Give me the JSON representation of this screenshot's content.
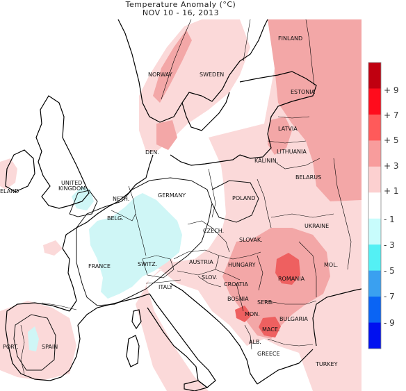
{
  "title": {
    "line1": "Temperature Anomaly (°C)",
    "line2": "NOV 10 - 16, 2013"
  },
  "labels": {
    "finland": "FINLAND",
    "norway": "NORWAY",
    "sweden": "SWEDEN",
    "estonia": "ESTONIA",
    "latvia": "LATVIA",
    "lithuania": "LITHUANIA",
    "kaliningrad": "KALININ.",
    "den": "DEN.",
    "belarus": "BELARUS",
    "ireland": "ELAND",
    "uk1": "UNITED",
    "uk2": "KINGDOM",
    "neth": "NETH.",
    "germany": "GERMANY",
    "poland": "POLAND",
    "belg": "BELG.",
    "ukraine": "UKRAINE",
    "czech": "CZECH.",
    "slovak": "SLOVAK.",
    "france": "FRANCE",
    "switz": "SWITZ.",
    "austria": "AUSTRIA",
    "hungary": "HUNGARY",
    "mol": "MOL.",
    "romania": "ROMANIA",
    "slov": "SLOV.",
    "croatia": "CROATIA",
    "italy": "ITALY",
    "bosnia": "BOSNIA",
    "serb": "SERB.",
    "mon": "MON.",
    "bulgaria": "BULGARIA",
    "mace": "MACE.",
    "port": "PORT.",
    "spain": "SPAIN",
    "alb": "ALB.",
    "greece": "GREECE",
    "turkey": "TURKEY"
  },
  "legend": {
    "ticks": [
      "+ 9",
      "+ 7",
      "+ 5",
      "+ 3",
      "+ 1",
      "- 1",
      "- 3",
      "- 5",
      "- 7",
      "- 9"
    ],
    "colors": [
      "#c00010",
      "#ff0c1c",
      "#ff5a5a",
      "#f89c9c",
      "#fcd0d0",
      "#ffffff",
      "#c8fcfc",
      "#54f0f4",
      "#3aa0f0",
      "#0a64f4",
      "#0010f0"
    ]
  },
  "anomaly_colors": {
    "plus1_3": "#fbd9d9",
    "plus3_5": "#f3a7a7",
    "plus5_7": "#ee6060",
    "minus1_3": "#cff6f6"
  }
}
